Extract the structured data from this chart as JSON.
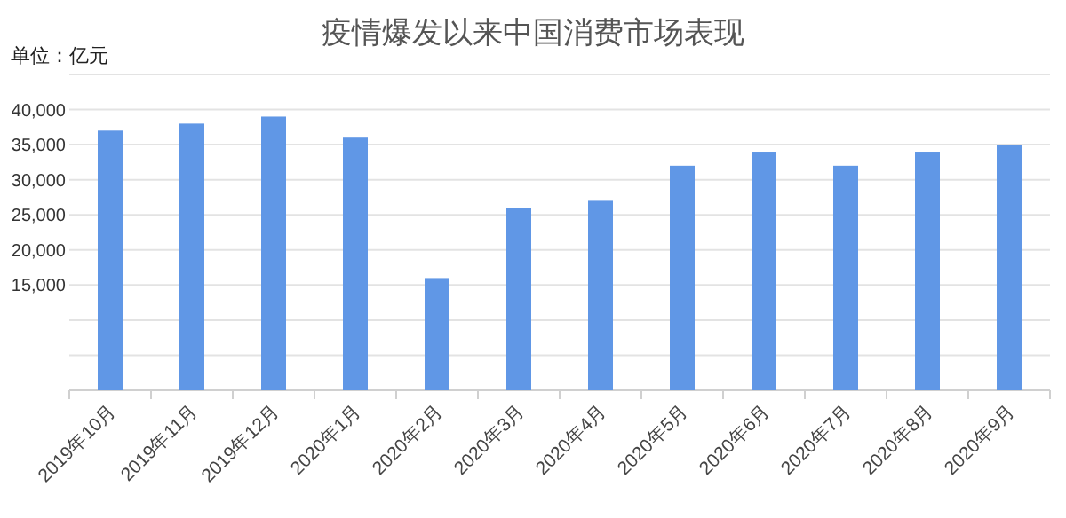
{
  "chart_data": {
    "type": "bar",
    "title": "疫情爆发以来中国消费市场表现",
    "annotations": [
      "单位：亿元"
    ],
    "categories": [
      "2019年10月",
      "2019年11月",
      "2019年12月",
      "2020年1月",
      "2020年2月",
      "2020年3月",
      "2020年4月",
      "2020年5月",
      "2020年6月",
      "2020年7月",
      "2020年8月",
      "2020年9月"
    ],
    "series": [
      {
        "color": "#6097e6",
        "values": [
          37000,
          38000,
          39000,
          36000,
          16000,
          26000,
          27000,
          32000,
          34000,
          32000,
          34000,
          35000
        ]
      }
    ],
    "ylim": [
      0,
      45000
    ],
    "yticks": [
      {
        "value": 5000,
        "label": null
      },
      {
        "value": 10000,
        "label": null
      },
      {
        "value": 15000,
        "label": "15,000"
      },
      {
        "value": 20000,
        "label": "20,000"
      },
      {
        "value": 25000,
        "label": "25,000"
      },
      {
        "value": 30000,
        "label": "30,000"
      },
      {
        "value": 35000,
        "label": "35,000"
      },
      {
        "value": 40000,
        "label": "40,000"
      },
      {
        "value": 45000,
        "label": null
      }
    ],
    "grid": "y"
  }
}
